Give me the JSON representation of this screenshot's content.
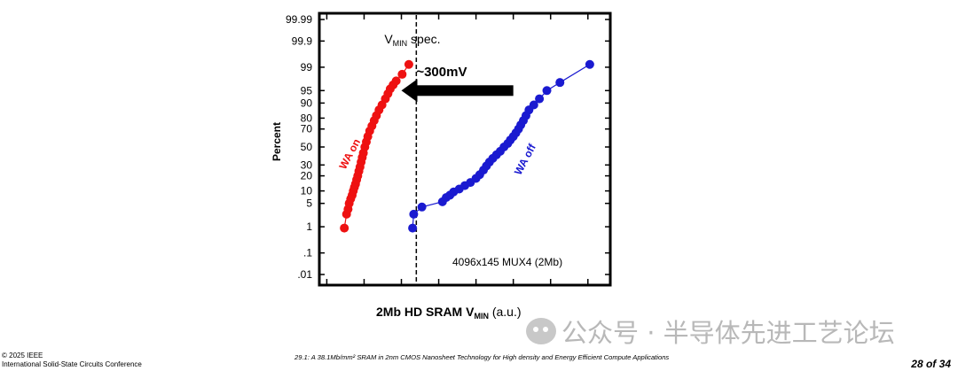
{
  "chart_data": {
    "type": "scatter",
    "y_scale": "normal-probability",
    "ylabel": "Percent",
    "xlabel_main": "2Mb HD SRAM V",
    "xlabel_sub": "MIN",
    "xlabel_suffix": " (a.u.)",
    "y_ticks": [
      0.01,
      0.1,
      1,
      5,
      10,
      20,
      30,
      50,
      70,
      80,
      90,
      95,
      99,
      99.9,
      99.99
    ],
    "y_tick_labels": [
      ".01",
      ".1",
      "1",
      "5",
      "10",
      "20",
      "30",
      "50",
      "70",
      "80",
      "90",
      "95",
      "99",
      "99.9",
      "99.99"
    ],
    "x_ticks": [
      0,
      1,
      2,
      3,
      4,
      5,
      6,
      7
    ],
    "xlim": [
      -0.2,
      7.6
    ],
    "vmin_spec_x": 2.4,
    "vmin_spec_label": "V",
    "vmin_spec_sub": "MIN",
    "vmin_spec_suffix": " spec.",
    "delta_label": "~300mV",
    "arrow_y_percent": 95,
    "arrow_from_x": 5.0,
    "arrow_to_x": 2.0,
    "box_label": "4096x145 MUX4 (2Mb)",
    "series": [
      {
        "name": "WA on",
        "color": "#ee1111",
        "label_x": 0.7,
        "label_y_percent": 40,
        "x": [
          0.47,
          0.53,
          0.57,
          0.6,
          0.64,
          0.68,
          0.71,
          0.74,
          0.77,
          0.8,
          0.83,
          0.86,
          0.89,
          0.92,
          0.95,
          0.98,
          1.02,
          1.06,
          1.1,
          1.15,
          1.21,
          1.27,
          1.33,
          1.4,
          1.48,
          1.57,
          1.64,
          1.7,
          1.78,
          1.86,
          2.02,
          2.2
        ],
        "y": [
          0.9,
          2.5,
          3.5,
          5,
          6.5,
          8,
          10,
          12,
          14,
          17,
          20,
          24,
          28,
          33,
          38,
          43,
          50,
          56,
          62,
          68,
          73,
          78,
          82,
          86,
          89,
          92,
          94,
          95.5,
          96.5,
          97.3,
          98.3,
          99.2
        ]
      },
      {
        "name": "WA off",
        "color": "#1a1ad0",
        "label_x": 5.4,
        "label_y_percent": 34,
        "x": [
          2.3,
          2.33,
          2.55,
          3.1,
          3.2,
          3.3,
          3.4,
          3.55,
          3.7,
          3.85,
          4.0,
          4.1,
          4.2,
          4.28,
          4.36,
          4.45,
          4.55,
          4.65,
          4.75,
          4.85,
          4.92,
          5.0,
          5.07,
          5.14,
          5.2,
          5.27,
          5.34,
          5.42,
          5.55,
          5.7,
          5.9,
          6.25,
          7.05
        ],
        "y": [
          0.9,
          2.5,
          4,
          5.5,
          7,
          8,
          9.5,
          11,
          13,
          15,
          18,
          21,
          25,
          29,
          33,
          37,
          41,
          45,
          50,
          54,
          58,
          62,
          66,
          70,
          74,
          78,
          82,
          86,
          89,
          92,
          95,
          97,
          99.2
        ]
      }
    ]
  },
  "footer": {
    "copyright": "© 2025 IEEE",
    "conference": "International Solid-State Circuits Conference",
    "paper_title": "29.1: A 38.1Mb/mm² SRAM in 2nm CMOS Nanosheet Technology for High density and Energy Efficient Compute Applications",
    "page": "28 of 34"
  },
  "watermark": {
    "text": "公众号 · 半导体先进工艺论坛"
  }
}
